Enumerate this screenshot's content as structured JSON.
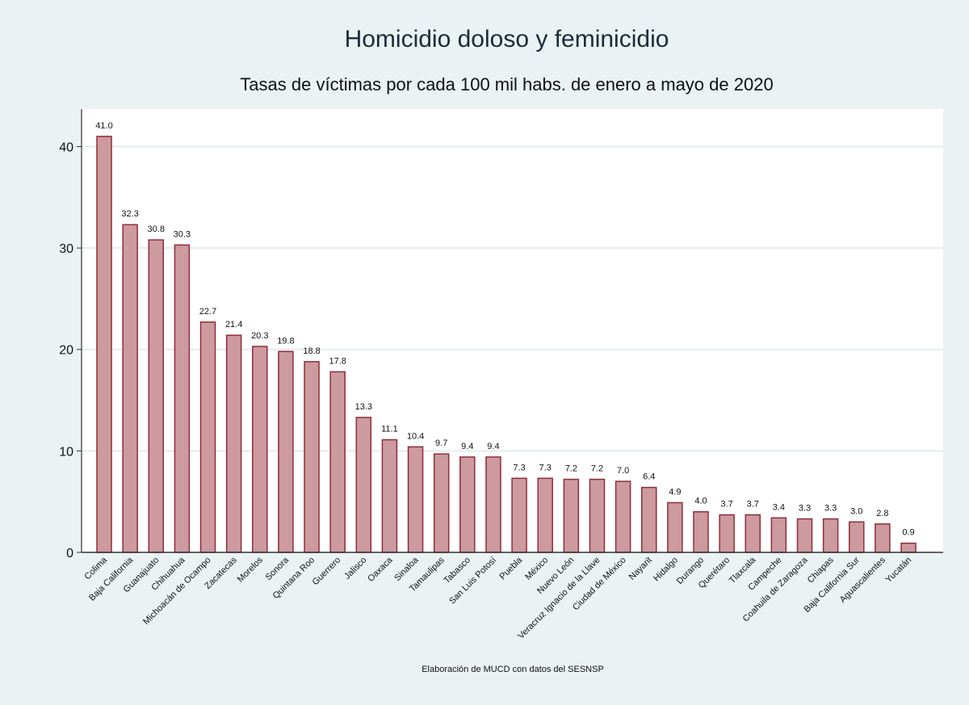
{
  "chart_data": {
    "type": "bar",
    "title": "Homicidio doloso y feminicidio",
    "subtitle": "Tasas de víctimas por cada 100 mil habs. de enero a mayo de 2020",
    "note": "Elaboración de MUCD con datos del SESNSP",
    "xlabel": "",
    "ylabel": "",
    "ylim": [
      0,
      43.7
    ],
    "yticks": [
      0,
      10,
      20,
      30,
      40
    ],
    "grid": true,
    "categories": [
      "Colima",
      "Baja California",
      "Guanajuato",
      "Chihuahua",
      "Michoacán de Ocampo",
      "Zacatecas",
      "Morelos",
      "Sonora",
      "Quintana Roo",
      "Guerrero",
      "Jalisco",
      "Oaxaca",
      "Sinaloa",
      "Tamaulipas",
      "Tabasco",
      "San Luis Potosí",
      "Puebla",
      "México",
      "Nuevo León",
      "Veracruz Ignacio de la Llave",
      "Ciudad de México",
      "Nayarit",
      "Hidalgo",
      "Durango",
      "Querétaro",
      "Tlaxcala",
      "Campeche",
      "Coahuila de Zaragoza",
      "Chiapas",
      "Baja California Sur",
      "Aguascalientes",
      "Yucatán"
    ],
    "values": [
      41.0,
      32.3,
      30.8,
      30.3,
      22.7,
      21.4,
      20.3,
      19.8,
      18.8,
      17.8,
      13.3,
      11.1,
      10.4,
      9.7,
      9.4,
      9.4,
      7.3,
      7.3,
      7.2,
      7.2,
      7.0,
      6.4,
      4.9,
      4.0,
      3.7,
      3.7,
      3.4,
      3.3,
      3.3,
      3.0,
      2.8,
      0.9
    ],
    "data_labels": [
      "41.0",
      "32.3",
      "30.8",
      "30.3",
      "22.7",
      "21.4",
      "20.3",
      "19.8",
      "18.8",
      "17.8",
      "13.3",
      "11.1",
      "10.4",
      "9.7",
      "9.4",
      "9.4",
      "7.3",
      "7.3",
      "7.2",
      "7.2",
      "7.0",
      "6.4",
      "4.9",
      "4.0",
      "3.7",
      "3.7",
      "3.4",
      "3.3",
      "3.3",
      "3.0",
      "2.8",
      "0.9"
    ],
    "colors": {
      "bar_fill": "#cc9a9f",
      "bar_stroke": "#8e2e37",
      "background": "#eaf2f3",
      "plot_background": "#ffffff",
      "grid": "#e3eded"
    }
  }
}
